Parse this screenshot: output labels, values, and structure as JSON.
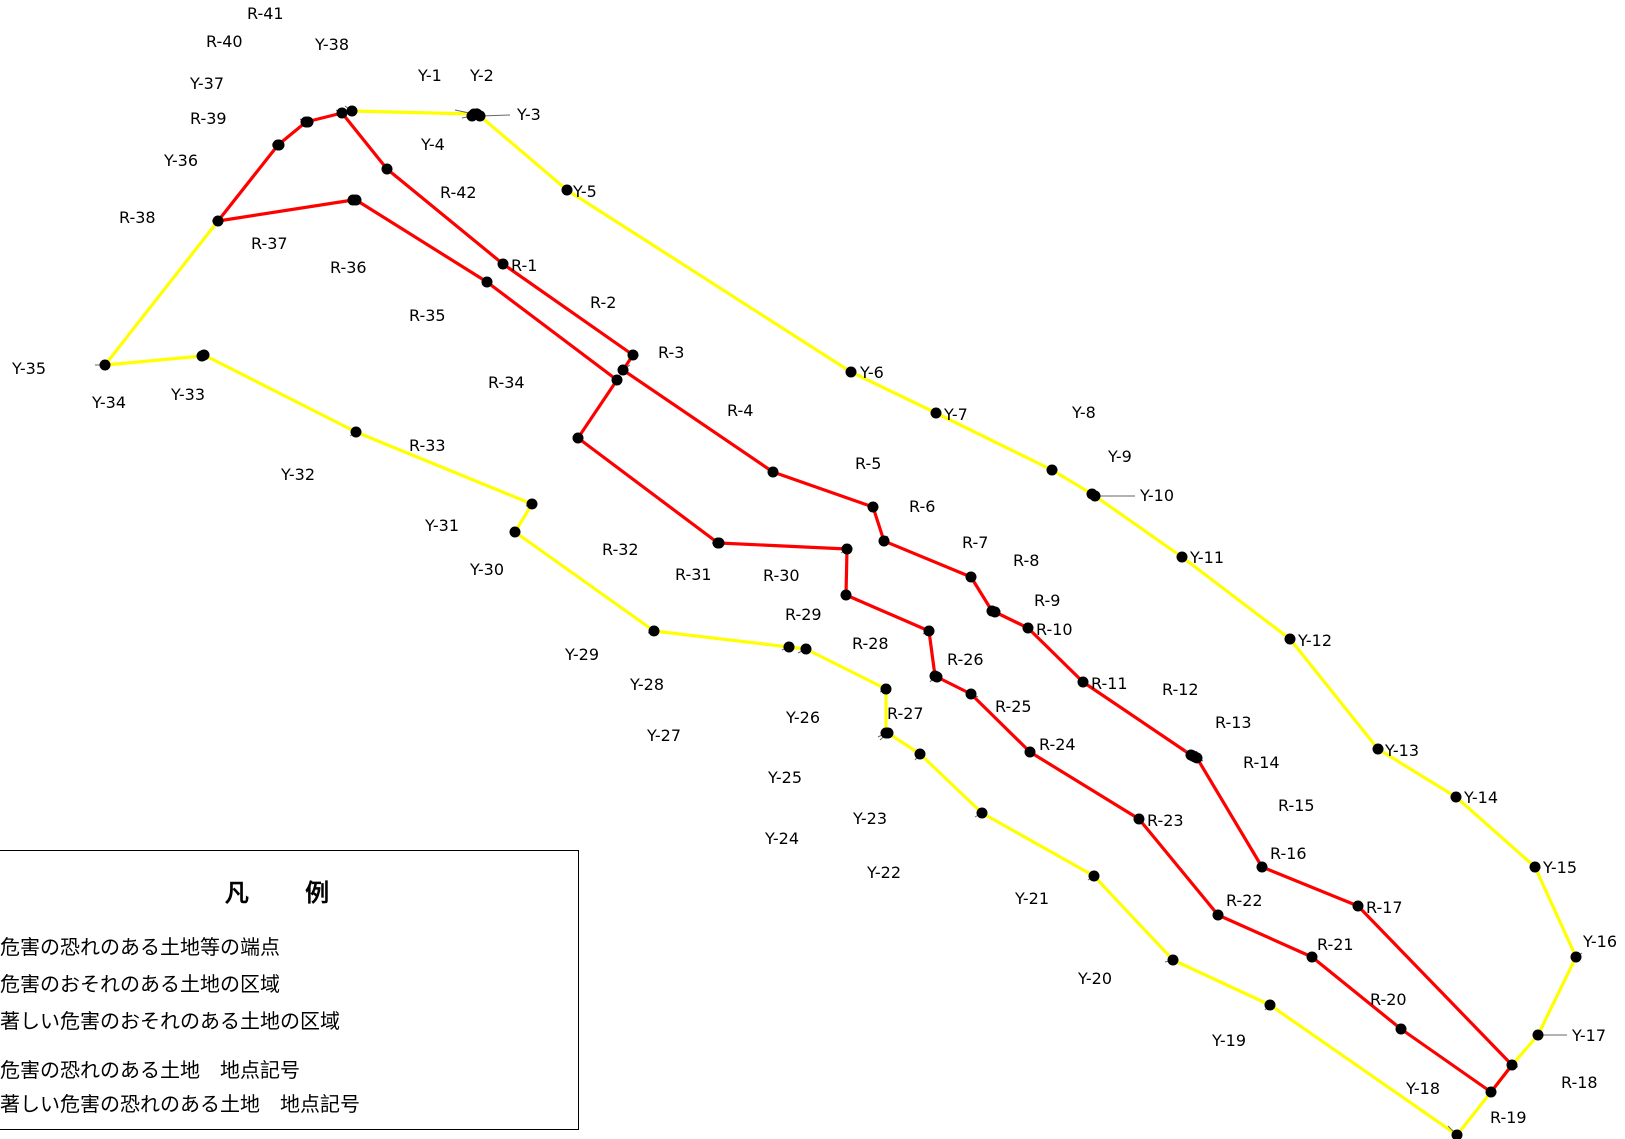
{
  "colors": {
    "yellow_zone": "#ffff00",
    "red_zone": "#ff0000",
    "point": "#000000"
  },
  "map": {
    "yellow_boundary_points": [
      "Y-1",
      "Y-2",
      "Y-3",
      "Y-4",
      "Y-5",
      "Y-6",
      "Y-7",
      "Y-8",
      "Y-9",
      "Y-10",
      "Y-11",
      "Y-12",
      "Y-13",
      "Y-14",
      "Y-15",
      "Y-16",
      "Y-17",
      "Y-18",
      "Y-19",
      "Y-20",
      "Y-21",
      "Y-22",
      "Y-23",
      "Y-24",
      "Y-25",
      "Y-26",
      "Y-27",
      "Y-28",
      "Y-29",
      "Y-30",
      "Y-31",
      "Y-32",
      "Y-33",
      "Y-34",
      "Y-35",
      "Y-36",
      "Y-37",
      "Y-38"
    ],
    "red_boundary_points": [
      "R-1",
      "R-2",
      "R-3",
      "R-4",
      "R-5",
      "R-6",
      "R-7",
      "R-8",
      "R-9",
      "R-10",
      "R-11",
      "R-12",
      "R-13",
      "R-14",
      "R-15",
      "R-16",
      "R-17",
      "R-18",
      "R-19",
      "R-20",
      "R-21",
      "R-22",
      "R-23",
      "R-24",
      "R-25",
      "R-26",
      "R-27",
      "R-28",
      "R-29",
      "R-30",
      "R-31",
      "R-32",
      "R-33",
      "R-34",
      "R-35",
      "R-36",
      "R-37",
      "R-38",
      "R-39",
      "R-40",
      "R-41",
      "R-42"
    ]
  },
  "legend": {
    "title": "凡 例",
    "items": [
      "危害の恐れのある土地等の端点",
      "危害のおそれのある土地の区域",
      "著しい危害のおそれのある土地の区域",
      "危害の恐れのある土地　地点記号",
      "著しい危害の恐れのある土地　地点記号"
    ]
  }
}
